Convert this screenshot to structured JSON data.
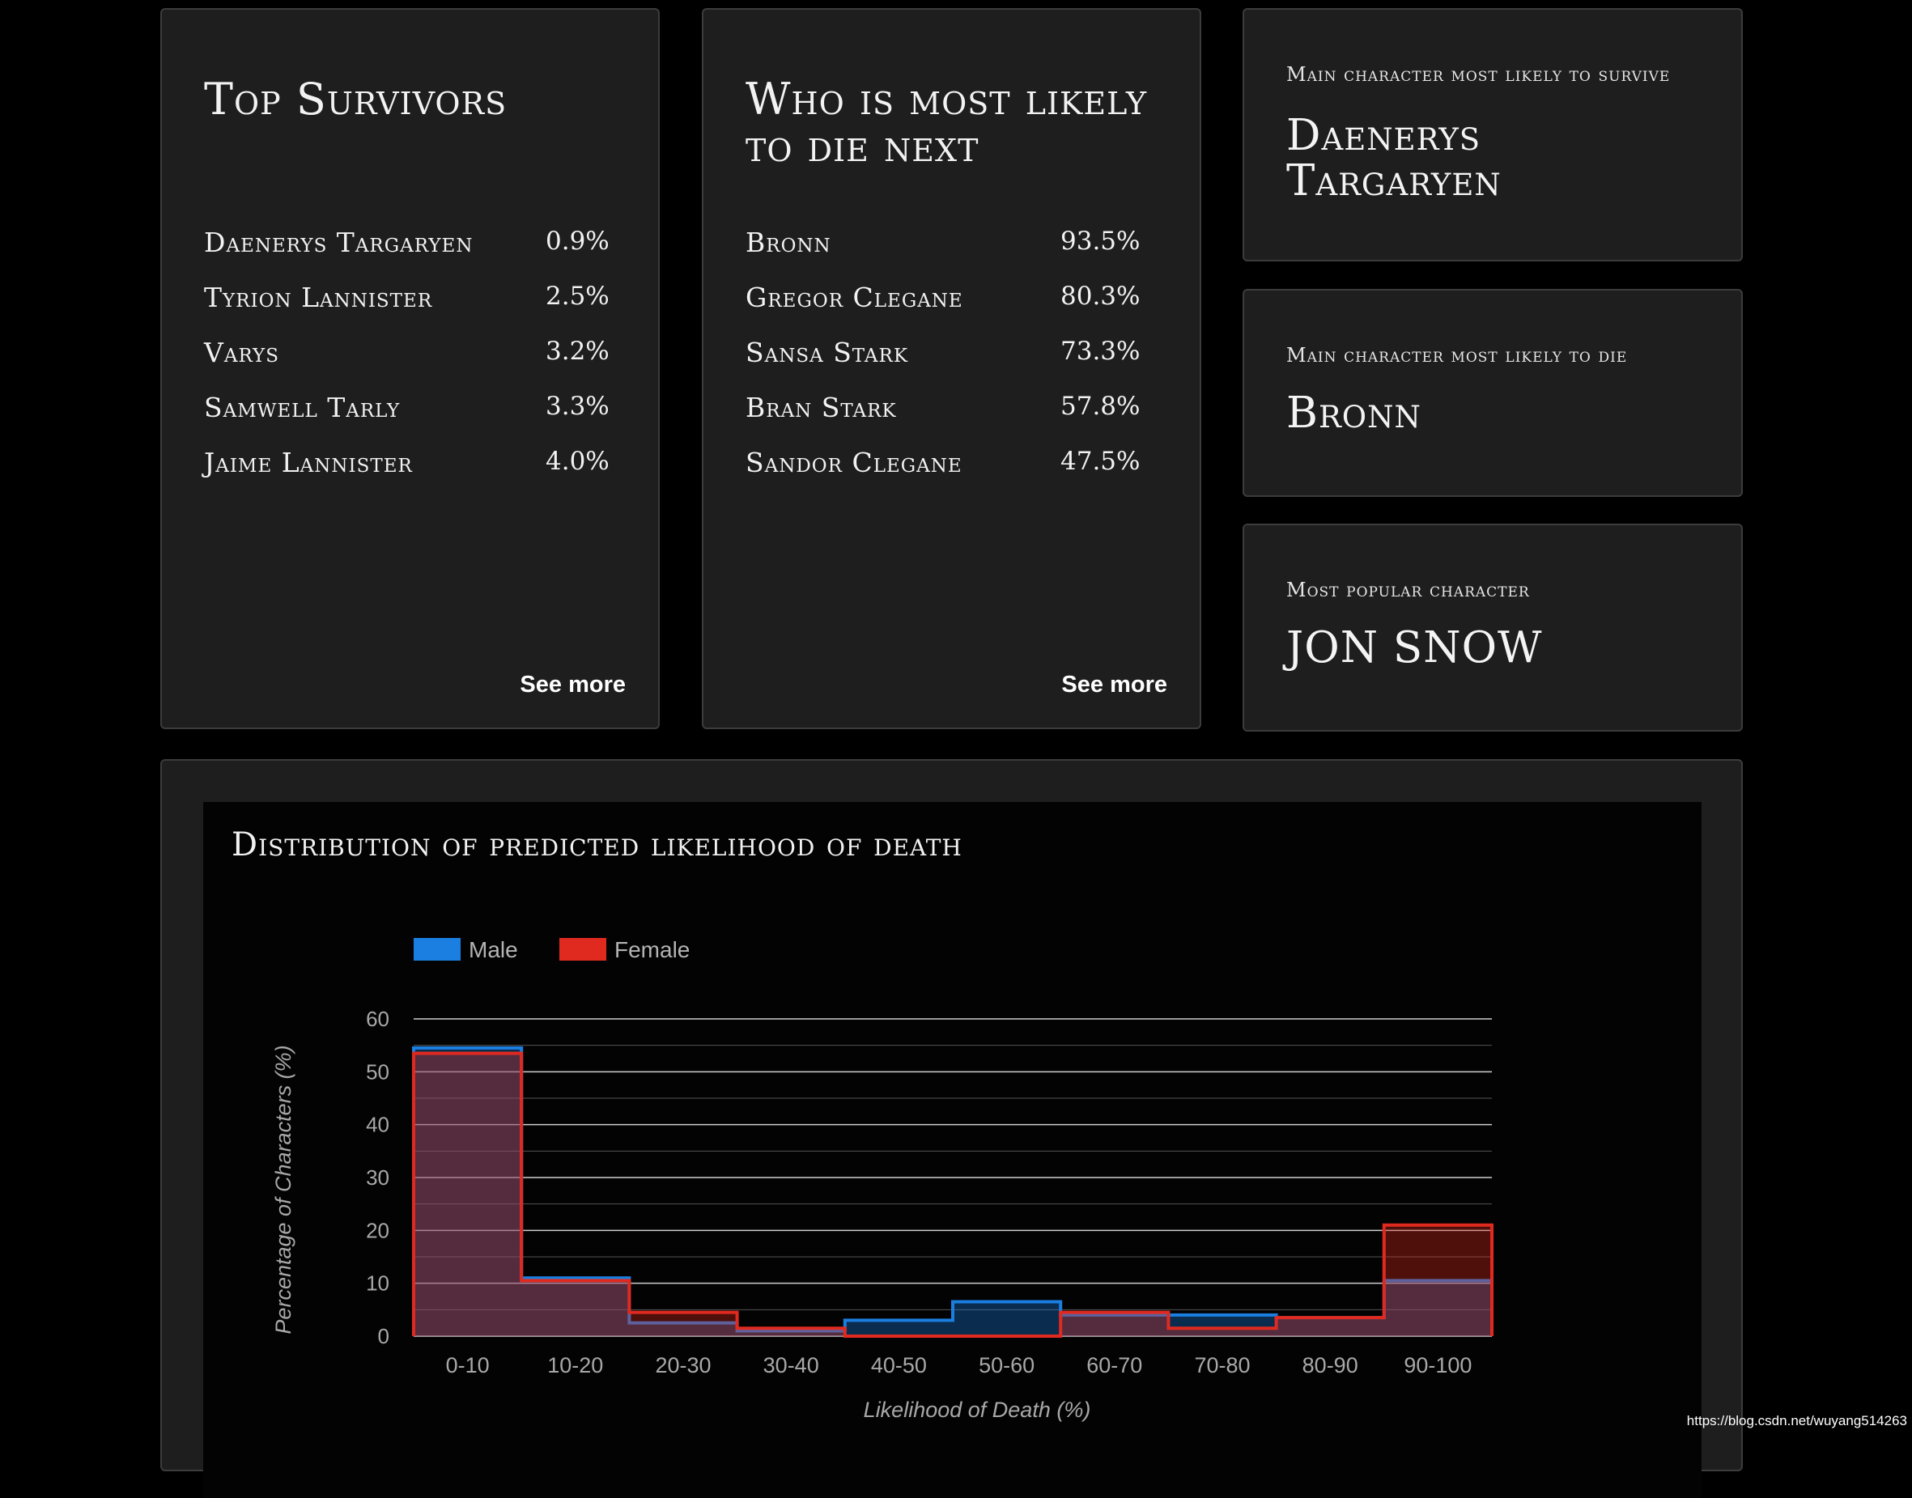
{
  "survivors": {
    "title": "Top Survivors",
    "items": [
      {
        "name": "Daenerys Targaryen",
        "pct": "0.9%"
      },
      {
        "name": "Tyrion Lannister",
        "pct": "2.5%"
      },
      {
        "name": "Varys",
        "pct": "3.2%"
      },
      {
        "name": "Samwell Tarly",
        "pct": "3.3%"
      },
      {
        "name": "Jaime Lannister",
        "pct": "4.0%"
      }
    ],
    "see_more": "See more"
  },
  "die_next": {
    "title": "Who is most likely to die next",
    "items": [
      {
        "name": "Bronn",
        "pct": "93.5%"
      },
      {
        "name": "Gregor Clegane",
        "pct": "80.3%"
      },
      {
        "name": "Sansa Stark",
        "pct": "73.3%"
      },
      {
        "name": "Bran Stark",
        "pct": "57.8%"
      },
      {
        "name": "Sandor Clegane",
        "pct": "47.5%"
      }
    ],
    "see_more": "See more"
  },
  "stats": {
    "survive": {
      "label": "Main character most likely to survive",
      "value": "Daenerys Targaryen"
    },
    "die": {
      "label": "Main character most likely to die",
      "value": "Bronn"
    },
    "popular": {
      "label": "Most popular character",
      "value": "JON SNOW"
    }
  },
  "chart": {
    "title": "Distribution of predicted likelihood of death"
  },
  "chart_data": {
    "type": "area",
    "categories": [
      "0-10",
      "10-20",
      "20-30",
      "30-40",
      "40-50",
      "50-60",
      "60-70",
      "70-80",
      "80-90",
      "90-100"
    ],
    "series": [
      {
        "name": "Male",
        "color": "#1a7fe0",
        "values": [
          54.5,
          11,
          2.5,
          1,
          3,
          6.5,
          4,
          4,
          3.5,
          10.5
        ]
      },
      {
        "name": "Female",
        "color": "#e02a20",
        "values": [
          53.5,
          10.5,
          4.5,
          1.5,
          0,
          0,
          4.5,
          1.5,
          3.5,
          21
        ]
      }
    ],
    "xlabel": "Likelihood of Death (%)",
    "ylabel": "Percentage of Characters (%)",
    "ylim": [
      0,
      60
    ],
    "yticks": [
      0,
      10,
      20,
      30,
      40,
      50,
      60
    ],
    "legend_position": "top-left",
    "grid": true
  },
  "watermark": "https://blog.csdn.net/wuyang514263"
}
